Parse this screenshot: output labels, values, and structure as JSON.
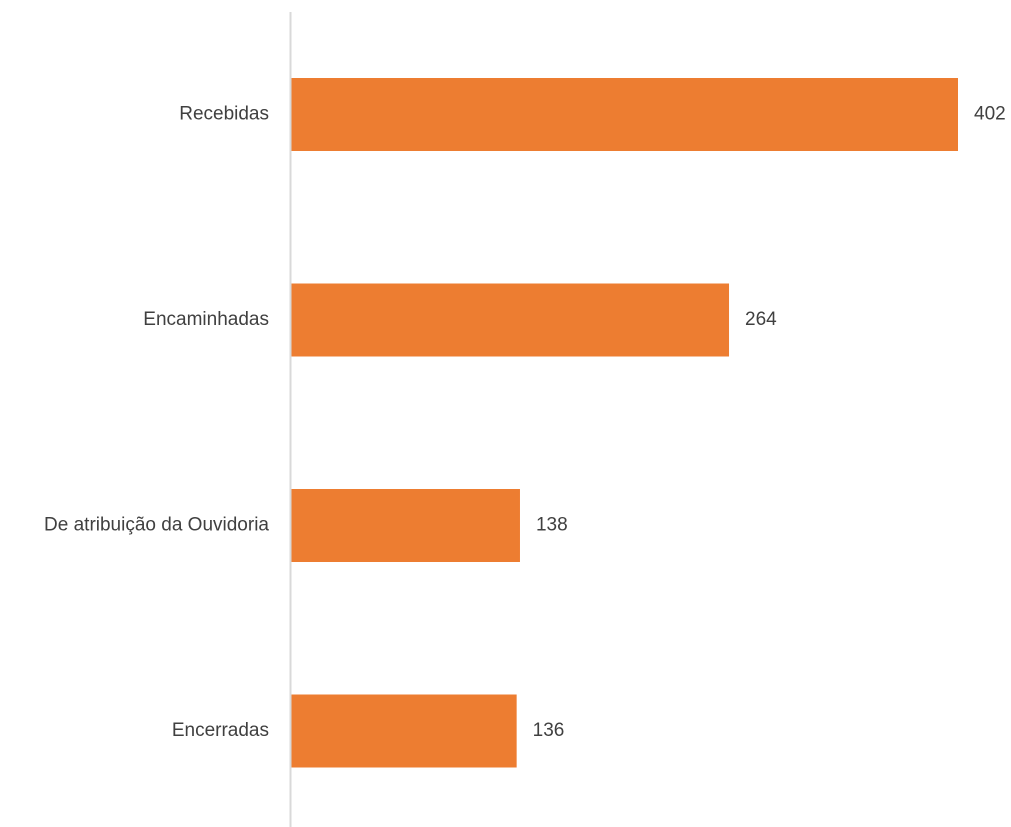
{
  "chart_data": {
    "type": "bar",
    "orientation": "horizontal",
    "categories": [
      "Recebidas",
      "Encaminhadas",
      "De atribuição da Ouvidoria",
      "Encerradas"
    ],
    "values": [
      402,
      264,
      138,
      136
    ],
    "title": "",
    "xlabel": "",
    "ylabel": "",
    "xlim": [
      0,
      402
    ],
    "grid": false,
    "legend": "none",
    "bar_color": "#ED7D31",
    "axis_color": "#D9D9D9",
    "text_color": "#404040",
    "data_labels": true
  }
}
